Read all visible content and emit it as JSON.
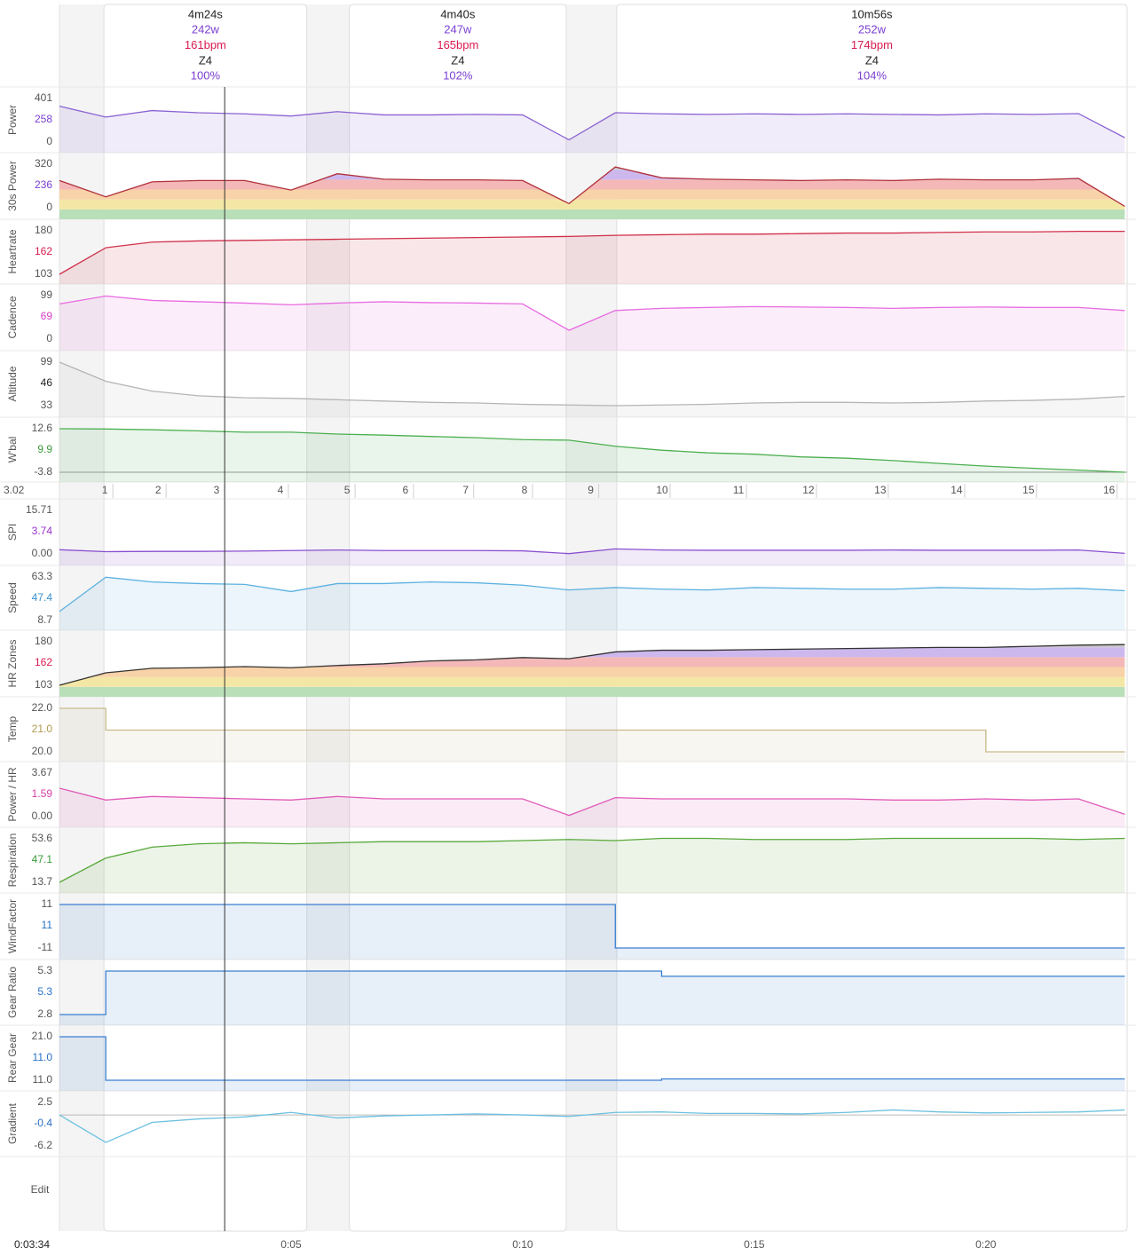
{
  "xlim": [
    0,
    23.05
  ],
  "xticks": [
    {
      "value": 5,
      "label": "0:05"
    },
    {
      "value": 10,
      "label": "0:10"
    },
    {
      "value": 15,
      "label": "0:15"
    },
    {
      "value": 20,
      "label": "0:20"
    }
  ],
  "cursor_time": {
    "value": 3.567,
    "label": "0:03:34"
  },
  "time": [
    0,
    1,
    2,
    3,
    4,
    5,
    6,
    7,
    8,
    9,
    10,
    11,
    12,
    13,
    14,
    15,
    16,
    17,
    18,
    19,
    20,
    21,
    22,
    23
  ],
  "intervals": [
    {
      "start": 0.96,
      "end": 5.34,
      "duration": "4m24s",
      "power": "242w",
      "heartrate": "161bpm",
      "zone": "Z4",
      "percent": "100%"
    },
    {
      "start": 6.26,
      "end": 10.94,
      "duration": "4m40s",
      "power": "247w",
      "heartrate": "165bpm",
      "zone": "Z4",
      "percent": "102%"
    },
    {
      "start": 12.03,
      "end": 23.05,
      "duration": "10m56s",
      "power": "252w",
      "heartrate": "174bpm",
      "zone": "Z4",
      "percent": "104%"
    }
  ],
  "lap_row_label": "3.02",
  "laps": [
    {
      "label": 1,
      "start": 0.98
    },
    {
      "label": 2,
      "start": 2.13
    },
    {
      "label": 3,
      "start": 3.39
    },
    {
      "label": 4,
      "start": 4.77
    },
    {
      "label": 5,
      "start": 6.21
    },
    {
      "label": 6,
      "start": 7.47
    },
    {
      "label": 7,
      "start": 8.77
    },
    {
      "label": 8,
      "start": 10.04
    },
    {
      "label": 9,
      "start": 11.47
    },
    {
      "label": 10,
      "start": 13.01
    },
    {
      "label": 11,
      "start": 14.66
    },
    {
      "label": 12,
      "start": 16.17
    },
    {
      "label": 13,
      "start": 17.72
    },
    {
      "label": 14,
      "start": 19.37
    },
    {
      "label": 15,
      "start": 20.92
    },
    {
      "label": 16,
      "start": 22.66
    }
  ],
  "edit_label": "Edit",
  "zone_colors": [
    "#b9dfb9",
    "#f4e7a6",
    "#f8d2a8",
    "#f4b8b8",
    "#cdb8ee",
    "#c8c8c8"
  ],
  "panels": [
    {
      "label": "Power",
      "type": "area",
      "color": "#8a63d2",
      "value_color": "#7b3fd0",
      "ylim": [
        0,
        401
      ],
      "yticks": [
        0,
        401
      ],
      "cursor": 258,
      "values": [
        330,
        230,
        290,
        270,
        260,
        240,
        280,
        250,
        250,
        255,
        250,
        20,
        270,
        260,
        255,
        260,
        255,
        260,
        255,
        250,
        260,
        255,
        262,
        40
      ]
    },
    {
      "label": "30s Power",
      "type": "zones",
      "color": "#b0303a",
      "value_color": "#7b3fd0",
      "ylim": [
        0,
        320
      ],
      "yticks": [
        0,
        320
      ],
      "cursor": 236,
      "values": [
        200,
        80,
        190,
        200,
        200,
        130,
        250,
        210,
        205,
        205,
        200,
        30,
        300,
        220,
        210,
        205,
        200,
        205,
        200,
        210,
        205,
        205,
        215,
        10
      ]
    },
    {
      "label": "Heartrate",
      "type": "area",
      "color": "#d0304a",
      "value_color": "#d81b50",
      "ylim": [
        103,
        180
      ],
      "yticks": [
        103,
        180
      ],
      "cursor": 162,
      "values": [
        103,
        150,
        160,
        162,
        163,
        164,
        165,
        166,
        167,
        168,
        169,
        170,
        172,
        173,
        174,
        174,
        175,
        176,
        176,
        177,
        178,
        178,
        179,
        179
      ]
    },
    {
      "label": "Cadence",
      "type": "area",
      "color": "#e86be0",
      "value_color": "#d63fc8",
      "ylim": [
        0,
        99
      ],
      "yticks": [
        0,
        99
      ],
      "cursor": 69,
      "values": [
        80,
        98,
        88,
        85,
        82,
        78,
        82,
        85,
        83,
        82,
        80,
        20,
        65,
        70,
        72,
        74,
        73,
        72,
        70,
        72,
        73,
        72,
        72,
        65
      ]
    },
    {
      "label": "Altitude",
      "type": "area",
      "color": "#b5b5b5",
      "value_color": "#222222",
      "ylim": [
        33,
        99
      ],
      "yticks": [
        33,
        99
      ],
      "cursor": 46,
      "values": [
        99,
        70,
        55,
        48,
        45,
        44,
        42,
        40,
        38,
        37,
        35,
        34,
        33,
        34,
        35,
        37,
        38,
        38,
        37,
        38,
        40,
        41,
        43,
        47
      ]
    },
    {
      "label": "W'bal",
      "type": "area",
      "color": "#4caf50",
      "value_color": "#3a9a3a",
      "ylim": [
        -3.8,
        12.6
      ],
      "yticks": [
        -3.8,
        12.6
      ],
      "cursor": 9.9,
      "base_line": true,
      "values": [
        12.6,
        12.5,
        12.2,
        11.8,
        11.3,
        11.3,
        10.6,
        10.2,
        9.7,
        9.2,
        8.5,
        8.3,
        6,
        4.5,
        3.5,
        3,
        2,
        1.5,
        0.6,
        -0.5,
        -1.5,
        -2.3,
        -3,
        -3.8
      ]
    },
    {
      "label": "SPI",
      "type": "area",
      "color": "#8a4fd0",
      "value_color": "#9a30d0",
      "ylim": [
        0,
        15.71
      ],
      "yticks": [
        {
          "value": 0,
          "label": "0.00"
        },
        15.71
      ],
      "cursor": 3.74,
      "values": [
        1.5,
        0.8,
        0.9,
        0.9,
        1,
        1.2,
        1.4,
        1.2,
        1.2,
        1.2,
        1.1,
        0.1,
        1.8,
        1.4,
        1.3,
        1.3,
        1.3,
        1.3,
        1.4,
        1.3,
        1.3,
        1.3,
        1.4,
        0.2
      ]
    },
    {
      "label": "Speed",
      "type": "area",
      "color": "#5bb0e0",
      "value_color": "#3a90d0",
      "ylim": [
        8.7,
        63.3
      ],
      "yticks": [
        8.7,
        63.3
      ],
      "cursor": 47.4,
      "values": [
        20,
        63,
        57,
        55,
        54,
        45,
        55,
        55,
        57,
        56,
        53,
        47,
        50,
        48,
        47,
        50,
        49,
        48,
        48,
        50,
        49,
        48,
        49,
        46
      ]
    },
    {
      "label": "HR Zones",
      "type": "zones",
      "color": "#333333",
      "value_color": "#d81b50",
      "ylim": [
        103,
        180
      ],
      "yticks": [
        103,
        180
      ],
      "cursor": 162,
      "values": [
        103,
        125,
        133,
        134,
        136,
        134,
        138,
        141,
        146,
        148,
        152,
        150,
        162,
        165,
        165,
        166,
        167,
        168,
        169,
        170,
        170,
        172,
        174,
        175
      ]
    },
    {
      "label": "Temp",
      "type": "step",
      "color": "#c8b98a",
      "value_color": "#b09a50",
      "ylim": [
        20,
        22
      ],
      "yticks": [
        {
          "value": 20,
          "label": "20.0"
        },
        {
          "value": 22,
          "label": "22.0"
        }
      ],
      "cursor": {
        "value": 21,
        "label": "21.0"
      },
      "values": [
        22,
        21,
        21,
        21,
        21,
        21,
        21,
        21,
        21,
        21,
        21,
        21,
        21,
        21,
        21,
        21,
        21,
        21,
        21,
        21,
        20,
        20,
        20,
        20
      ]
    },
    {
      "label": "Power / HR",
      "type": "area",
      "color": "#e05ab8",
      "value_color": "#d63fa8",
      "ylim": [
        0,
        3.67
      ],
      "yticks": [
        {
          "value": 0,
          "label": "0.00"
        },
        3.67
      ],
      "cursor": 1.59,
      "values": [
        2.4,
        1.4,
        1.7,
        1.6,
        1.5,
        1.4,
        1.7,
        1.5,
        1.5,
        1.5,
        1.5,
        0.1,
        1.6,
        1.5,
        1.5,
        1.5,
        1.5,
        1.5,
        1.4,
        1.4,
        1.5,
        1.4,
        1.5,
        0.2
      ]
    },
    {
      "label": "Respiration",
      "type": "area",
      "color": "#58a83a",
      "value_color": "#3a9a3a",
      "ylim": [
        13.7,
        53.6
      ],
      "yticks": [
        13.7,
        53.6
      ],
      "cursor": 47.1,
      "values": [
        13.7,
        36,
        46,
        49,
        50,
        49,
        50,
        51,
        51,
        51,
        52,
        53,
        52,
        54,
        54,
        53,
        53,
        53,
        54,
        54,
        54,
        54,
        53,
        54
      ]
    },
    {
      "label": "WindFactor",
      "type": "step",
      "color": "#3a7fd0",
      "value_color": "#2a70c8",
      "ylim": [
        -11,
        11
      ],
      "yticks": [
        -11,
        11
      ],
      "cursor": 11,
      "values": [
        11,
        11,
        11,
        11,
        11,
        11,
        11,
        11,
        11,
        11,
        11,
        11,
        -11,
        -11,
        -11,
        -11,
        -11,
        -11,
        -11,
        -11,
        -11,
        -11,
        -11,
        -11
      ]
    },
    {
      "label": "Gear Ratio",
      "type": "step",
      "color": "#3a7fd0",
      "value_color": "#2a70c8",
      "ylim": [
        2.8,
        5.3
      ],
      "yticks": [
        2.8,
        5.3
      ],
      "cursor": 5.3,
      "values": [
        2.8,
        5.3,
        5.3,
        5.3,
        5.3,
        5.3,
        5.3,
        5.3,
        5.3,
        5.3,
        5.3,
        5.3,
        5.3,
        5,
        5,
        5,
        5,
        5,
        5,
        5,
        5,
        5,
        5,
        5
      ]
    },
    {
      "label": "Rear Gear",
      "type": "step",
      "color": "#3a7fd0",
      "value_color": "#2a70c8",
      "ylim": [
        11,
        21
      ],
      "yticks": [
        {
          "value": 11,
          "label": "11.0"
        },
        {
          "value": 21,
          "label": "21.0"
        }
      ],
      "cursor": {
        "value": 11,
        "label": "11.0"
      },
      "values": [
        21,
        11,
        11,
        11,
        11,
        11,
        11,
        11,
        11,
        11,
        11,
        11,
        11,
        11.3,
        11.3,
        11.3,
        11.3,
        11.3,
        11.3,
        11.3,
        11.3,
        11.3,
        11.3,
        11.3
      ]
    },
    {
      "label": "Gradient",
      "type": "line",
      "color": "#6bc0e0",
      "value_color": "#2a70c8",
      "ylim": [
        -6.2,
        2.5
      ],
      "yticks": [
        -6.2,
        2.5
      ],
      "cursor": -0.4,
      "zero_line": true,
      "values": [
        0,
        -5.5,
        -1.5,
        -0.8,
        -0.4,
        0.5,
        -0.6,
        -0.2,
        0,
        0.2,
        0,
        -0.3,
        0.5,
        0.6,
        0.3,
        0.3,
        0.2,
        0.5,
        1,
        0.6,
        0.4,
        0.5,
        0.6,
        1
      ]
    }
  ]
}
